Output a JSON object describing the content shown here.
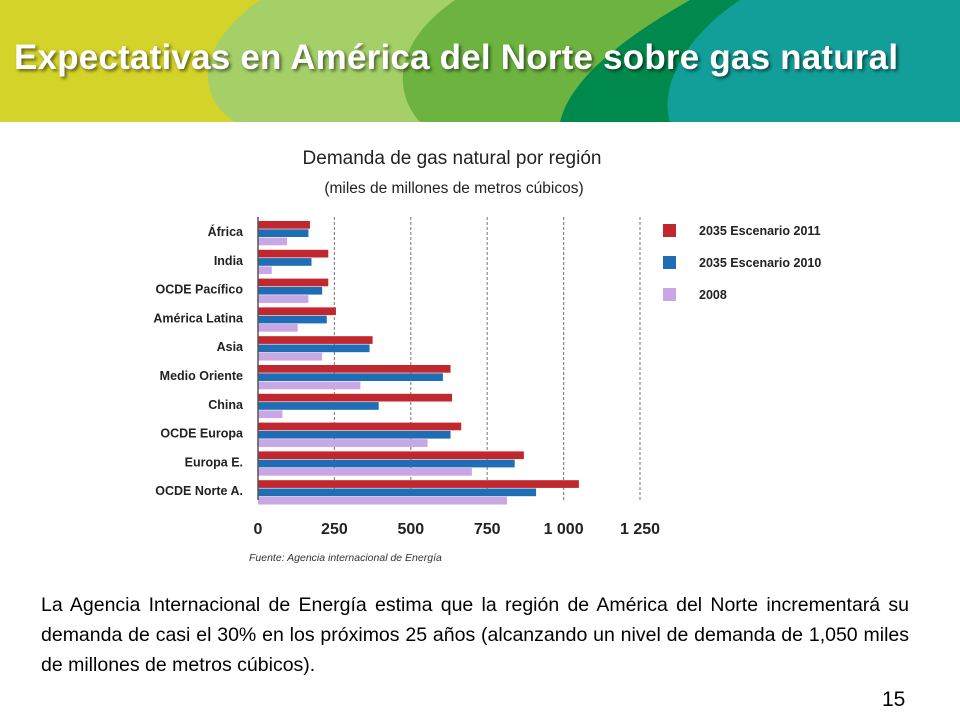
{
  "slide": {
    "title": "Expectativas en América del Norte sobre gas natural",
    "body_text": "La Agencia Internacional de Energía estima que la región de América del Norte incrementará su demanda de casi el 30% en los próximos 25 años (alcanzando un nivel de demanda de 1,050 miles de millones de metros cúbicos).",
    "page_number": "15",
    "header_colors": [
      "#d4d32a",
      "#a5d067",
      "#6db33f",
      "#00894c",
      "#129f9a"
    ]
  },
  "chart_data": {
    "type": "bar",
    "orientation": "horizontal",
    "title": "Demanda de gas natural por región",
    "subtitle": "(miles de millones de metros cúbicos)",
    "source": "Fuente: Agencia internacional de Energía",
    "categories": [
      "África",
      "India",
      "OCDE Pacífico",
      "América Latina",
      "Asia",
      "Medio Oriente",
      "China",
      "OCDE Europa",
      "Europa E.",
      "OCDE Norte A."
    ],
    "series": [
      {
        "name": "2035 Escenario 2011",
        "color": "#c1272d",
        "values": [
          170,
          230,
          230,
          255,
          375,
          630,
          635,
          665,
          870,
          1050
        ]
      },
      {
        "name": "2035 Escenario 2010",
        "color": "#1f6db5",
        "values": [
          165,
          175,
          210,
          225,
          365,
          605,
          395,
          630,
          840,
          910
        ]
      },
      {
        "name": "2008",
        "color": "#c9a6e4",
        "values": [
          95,
          45,
          165,
          130,
          210,
          335,
          80,
          555,
          700,
          815
        ]
      }
    ],
    "xlim": [
      0,
      1250
    ],
    "xticks": [
      0,
      250,
      500,
      750,
      1000,
      1250
    ],
    "xtick_labels": [
      "0",
      "250",
      "500",
      "750",
      "1 000",
      "1 250"
    ],
    "grid": "vertical dashed",
    "legend_position": "right"
  }
}
